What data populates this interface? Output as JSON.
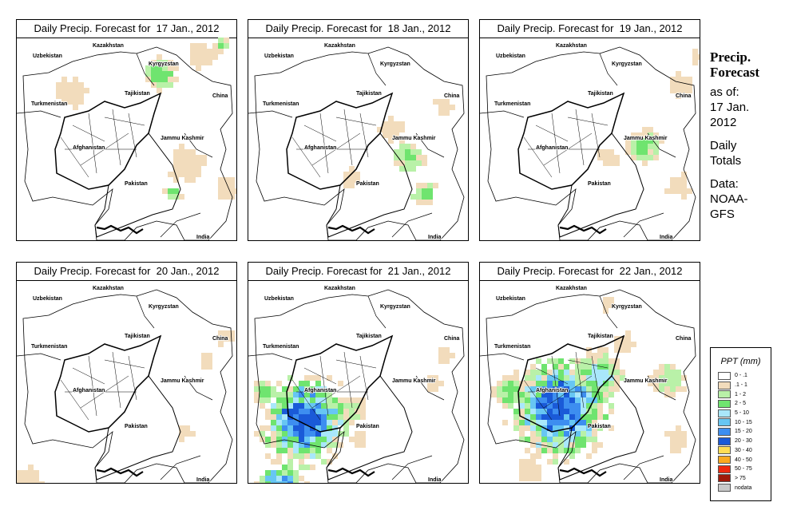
{
  "panels": [
    {
      "title": "Daily Precip. Forecast for  17 Jan., 2012"
    },
    {
      "title": "Daily Precip. Forecast for  18 Jan., 2012"
    },
    {
      "title": "Daily Precip. Forecast for  19 Jan., 2012"
    },
    {
      "title": "Daily Precip. Forecast for  20 Jan., 2012"
    },
    {
      "title": "Daily Precip. Forecast for  21 Jan., 2012"
    },
    {
      "title": "Daily Precip. Forecast for  22 Jan., 2012"
    }
  ],
  "map_labels": {
    "uzbekistan": "Uzbekistan",
    "kazakhstan": "Kazakhstan",
    "kyrgyzstan": "Kyrgyzstan",
    "tajikistan": "Tajikistan",
    "turkmenistan": "Turkmenistan",
    "china": "China",
    "afghanistan": "Afghanistan",
    "jammu_kashmir": "Jammu Kashmir",
    "pakistan": "Pakistan",
    "india": "India"
  },
  "side": {
    "heading_line1": "Precip.",
    "heading_line2": "Forecast",
    "asof": "as of:",
    "date_line1": "17 Jan.",
    "date_line2": "2012",
    "totals_line1": "Daily",
    "totals_line2": "Totals",
    "data_line1": "Data:",
    "data_line2": "NOAA-",
    "data_line3": "GFS"
  },
  "legend": {
    "title": "PPT (mm)",
    "items": [
      {
        "label": "0 - .1",
        "color": "#ffffff"
      },
      {
        "label": ".1 - 1",
        "color": "#f2dcbc"
      },
      {
        "label": "1 - 2",
        "color": "#b9f1a8"
      },
      {
        "label": "2 - 5",
        "color": "#6fe46f"
      },
      {
        "label": "5 - 10",
        "color": "#a9e7fb"
      },
      {
        "label": "10 - 15",
        "color": "#67c6f3"
      },
      {
        "label": "15 - 20",
        "color": "#3d8ef0"
      },
      {
        "label": "20 - 30",
        "color": "#1a5ad8"
      },
      {
        "label": "30 - 40",
        "color": "#ffdd55"
      },
      {
        "label": "40 - 50",
        "color": "#fbaa21"
      },
      {
        "label": "50 - 75",
        "color": "#ee2a10"
      },
      {
        "label": "> 75",
        "color": "#a01a0a"
      },
      {
        "label": "nodata",
        "color": "#c9c9c9"
      }
    ]
  }
}
